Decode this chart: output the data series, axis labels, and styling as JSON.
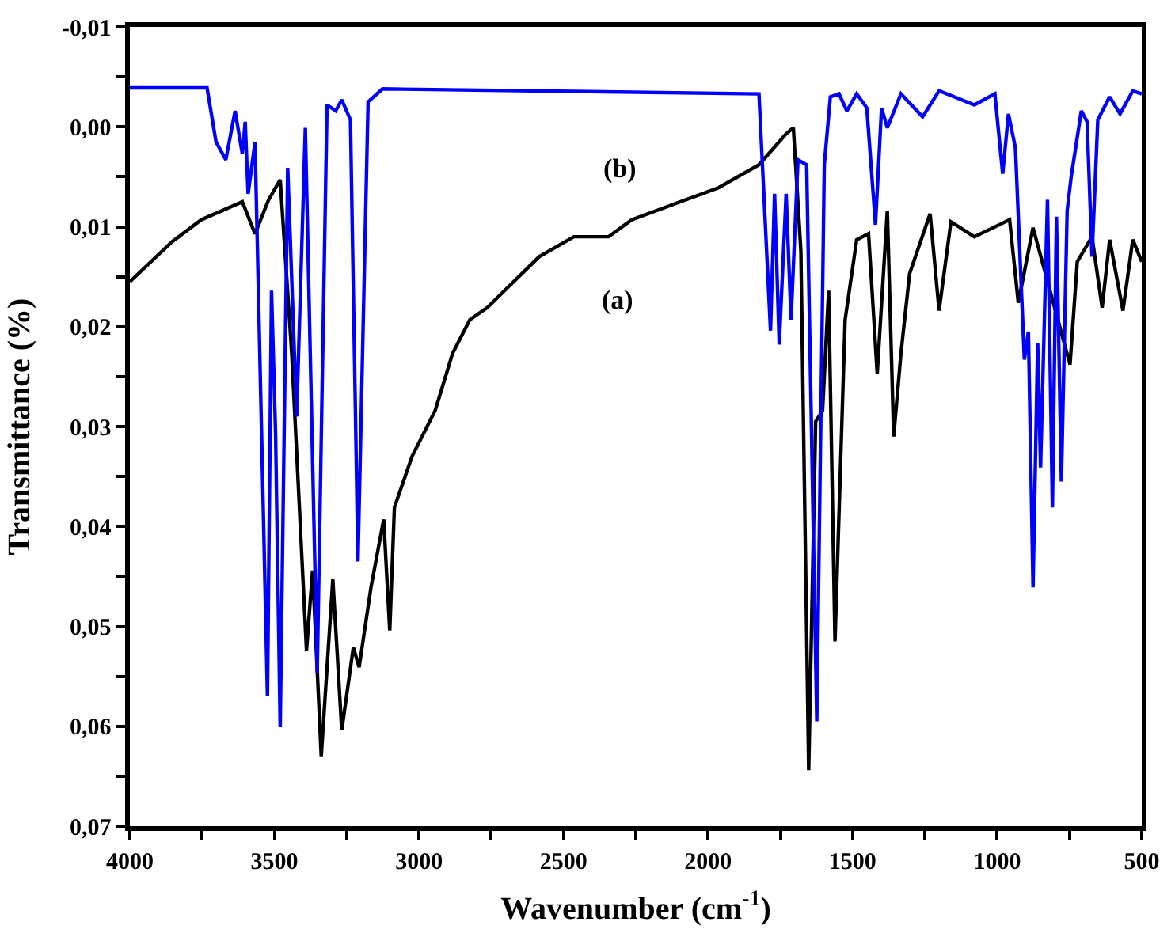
{
  "chart_data": {
    "type": "line",
    "xlabel": "Wavenumber (cm$^{-1}$)",
    "ylabel": "Transmittance (%)",
    "xlim": [
      4000,
      500
    ],
    "xticks": [
      4000,
      {
        "value": 3750,
        "label": null
      },
      3500,
      {
        "value": 3250,
        "label": null
      },
      3000,
      {
        "value": 2750,
        "label": null
      },
      2500,
      {
        "value": 2250,
        "label": null
      },
      2000,
      {
        "value": 1750,
        "label": null
      },
      1500,
      {
        "value": 1250,
        "label": null
      },
      1000,
      {
        "value": 750,
        "label": null
      },
      500
    ],
    "ylim": [
      0.07,
      -0.01
    ],
    "yticks": [
      {
        "value": -0.01,
        "label": "-0,01"
      },
      {
        "value": -0.005,
        "label": null
      },
      {
        "value": 0.0,
        "label": "0,00"
      },
      {
        "value": 0.005,
        "label": null
      },
      {
        "value": 0.01,
        "label": "0,01"
      },
      {
        "value": 0.015,
        "label": null
      },
      {
        "value": 0.02,
        "label": "0,02"
      },
      {
        "value": 0.025,
        "label": null
      },
      {
        "value": 0.03,
        "label": "0,03"
      },
      {
        "value": 0.035,
        "label": null
      },
      {
        "value": 0.04,
        "label": "0,04"
      },
      {
        "value": 0.045,
        "label": null
      },
      {
        "value": 0.05,
        "label": "0,05"
      },
      {
        "value": 0.055,
        "label": null
      },
      {
        "value": 0.06,
        "label": "0,06"
      },
      {
        "value": 0.065,
        "label": null
      },
      {
        "value": 0.07,
        "label": "0,07"
      }
    ],
    "marker": "none",
    "line_style": "solid",
    "annotations": [
      "(a)",
      "(b)"
    ],
    "series": [
      {
        "color": "#000000",
        "x": [
          4000,
          3854,
          3753,
          3611,
          3567,
          3520,
          3480,
          3440,
          3389,
          3368,
          3338,
          3298,
          3267,
          3227,
          3207,
          3166,
          3122,
          3101,
          3085,
          3024,
          2944,
          2884,
          2824,
          2764,
          2704,
          2584,
          2464,
          2344,
          2264,
          2124,
          1964,
          1824,
          1730,
          1705,
          1679,
          1652,
          1628,
          1604,
          1583,
          1561,
          1526,
          1486,
          1445,
          1415,
          1380,
          1358,
          1333,
          1303,
          1232,
          1201,
          1160,
          1079,
          957,
          927,
          876,
          748,
          723,
          672,
          637,
          611,
          565,
          531,
          500
        ],
        "values": [
          0.0155,
          0.0115,
          0.0093,
          0.0075,
          0.0107,
          0.0073,
          0.0053,
          0.0227,
          0.0524,
          0.0444,
          0.063,
          0.0453,
          0.0604,
          0.0521,
          0.0541,
          0.0461,
          0.0393,
          0.0504,
          0.0381,
          0.033,
          0.0284,
          0.0227,
          0.0193,
          0.0181,
          0.0164,
          0.013,
          0.011,
          0.011,
          0.0093,
          0.0078,
          0.0061,
          0.0038,
          0.0007,
          0.0001,
          0.0124,
          0.0644,
          0.0295,
          0.0284,
          0.0164,
          0.0515,
          0.0193,
          0.0113,
          0.0107,
          0.0247,
          0.0084,
          0.031,
          0.0227,
          0.0147,
          0.0087,
          0.0184,
          0.0095,
          0.011,
          0.0093,
          0.0176,
          0.0101,
          0.0238,
          0.0135,
          0.011,
          0.0181,
          0.0113,
          0.0184,
          0.0113,
          0.0135
        ]
      },
      {
        "color": "#0000ff",
        "x": [
          4000,
          3733,
          3702,
          3668,
          3636,
          3611,
          3601,
          3591,
          3567,
          3524,
          3510,
          3496,
          3480,
          3454,
          3423,
          3393,
          3352,
          3318,
          3288,
          3267,
          3237,
          3211,
          3176,
          3126,
          1824,
          1784,
          1770,
          1754,
          1730,
          1713,
          1689,
          1659,
          1624,
          1598,
          1577,
          1547,
          1520,
          1486,
          1451,
          1421,
          1400,
          1380,
          1333,
          1258,
          1201,
          1079,
          1008,
          981,
          961,
          937,
          906,
          892,
          876,
          860,
          850,
          826,
          809,
          795,
          778,
          758,
          744,
          709,
          689,
          672,
          652,
          611,
          575,
          531,
          500
        ],
        "values": [
          -0.0039,
          -0.0039,
          0.0015,
          0.0033,
          -0.0016,
          0.0027,
          -0.0005,
          0.0067,
          0.0015,
          0.057,
          0.0164,
          0.0307,
          0.0601,
          0.0041,
          0.029,
          0.0001,
          0.0547,
          -0.0022,
          -0.0016,
          -0.0027,
          -0.0007,
          0.0435,
          -0.0025,
          -0.0038,
          -0.0033,
          0.0204,
          0.0067,
          0.0218,
          0.0067,
          0.0193,
          0.0033,
          0.0038,
          0.0595,
          0.0038,
          -0.003,
          -0.0033,
          -0.0016,
          -0.0033,
          -0.0019,
          0.0098,
          -0.0019,
          0.0001,
          -0.0033,
          -0.001,
          -0.0036,
          -0.0022,
          -0.0033,
          0.0047,
          -0.0013,
          0.0021,
          0.0233,
          0.0205,
          0.0461,
          0.0216,
          0.0341,
          0.0073,
          0.0381,
          0.009,
          0.0355,
          0.0084,
          0.005,
          -0.0016,
          -0.0005,
          0.013,
          -0.0007,
          -0.003,
          -0.0013,
          -0.0036,
          -0.0033
        ]
      }
    ]
  }
}
